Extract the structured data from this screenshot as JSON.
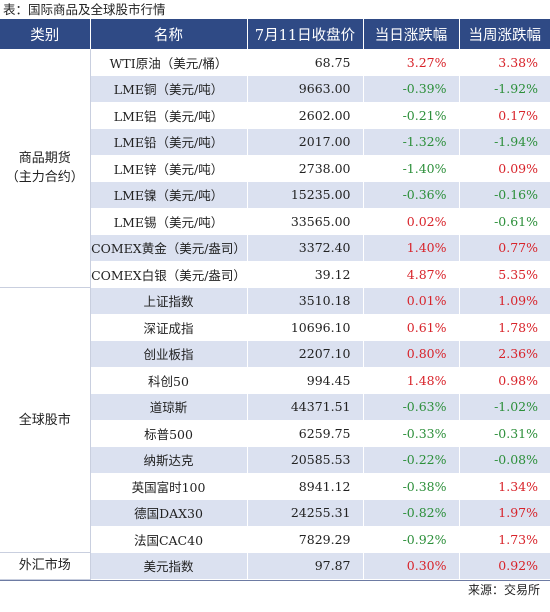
{
  "caption": "表：国际商品及全球股市行情",
  "headers": [
    "类别",
    "名称",
    "7月11日收盘价",
    "当日涨跌幅",
    "当周涨跌幅"
  ],
  "groups": [
    {
      "category": [
        "商品期货",
        "（主力合约）"
      ],
      "rows": [
        {
          "name": "WTI原油（美元/桶）",
          "close": "68.75",
          "day": "3.27%",
          "week": "3.38%"
        },
        {
          "name": "LME铜（美元/吨）",
          "close": "9663.00",
          "day": "-0.39%",
          "week": "-1.92%"
        },
        {
          "name": "LME铝（美元/吨）",
          "close": "2602.00",
          "day": "-0.21%",
          "week": "0.17%"
        },
        {
          "name": "LME铅（美元/吨）",
          "close": "2017.00",
          "day": "-1.32%",
          "week": "-1.94%"
        },
        {
          "name": "LME锌（美元/吨）",
          "close": "2738.00",
          "day": "-1.40%",
          "week": "0.09%"
        },
        {
          "name": "LME镍（美元/吨）",
          "close": "15235.00",
          "day": "-0.36%",
          "week": "-0.16%"
        },
        {
          "name": "LME锡（美元/吨）",
          "close": "33565.00",
          "day": "0.02%",
          "week": "-0.61%"
        },
        {
          "name": "COMEX黄金（美元/盎司）",
          "close": "3372.40",
          "day": "1.40%",
          "week": "0.77%"
        },
        {
          "name": "COMEX白银（美元/盎司）",
          "close": "39.12",
          "day": "4.87%",
          "week": "5.35%"
        }
      ]
    },
    {
      "category": [
        "全球股市"
      ],
      "rows": [
        {
          "name": "上证指数",
          "close": "3510.18",
          "day": "0.01%",
          "week": "1.09%"
        },
        {
          "name": "深证成指",
          "close": "10696.10",
          "day": "0.61%",
          "week": "1.78%"
        },
        {
          "name": "创业板指",
          "close": "2207.10",
          "day": "0.80%",
          "week": "2.36%"
        },
        {
          "name": "科创50",
          "close": "994.45",
          "day": "1.48%",
          "week": "0.98%"
        },
        {
          "name": "道琼斯",
          "close": "44371.51",
          "day": "-0.63%",
          "week": "-1.02%"
        },
        {
          "name": "标普500",
          "close": "6259.75",
          "day": "-0.33%",
          "week": "-0.31%"
        },
        {
          "name": "纳斯达克",
          "close": "20585.53",
          "day": "-0.22%",
          "week": "-0.08%"
        },
        {
          "name": "英国富时100",
          "close": "8941.12",
          "day": "-0.38%",
          "week": "1.34%"
        },
        {
          "name": "德国DAX30",
          "close": "24255.31",
          "day": "-0.82%",
          "week": "1.97%"
        },
        {
          "name": "法国CAC40",
          "close": "7829.29",
          "day": "-0.92%",
          "week": "1.73%"
        }
      ]
    },
    {
      "category": [
        "外汇市场"
      ],
      "rows": [
        {
          "name": "美元指数",
          "close": "97.87",
          "day": "0.30%",
          "week": "0.92%"
        }
      ]
    }
  ],
  "source": "来源：交易所",
  "colors": {
    "header_bg": "#2f4a85",
    "band": "#dbe1f0",
    "up": "#d8232a",
    "down": "#2c8f3a"
  }
}
